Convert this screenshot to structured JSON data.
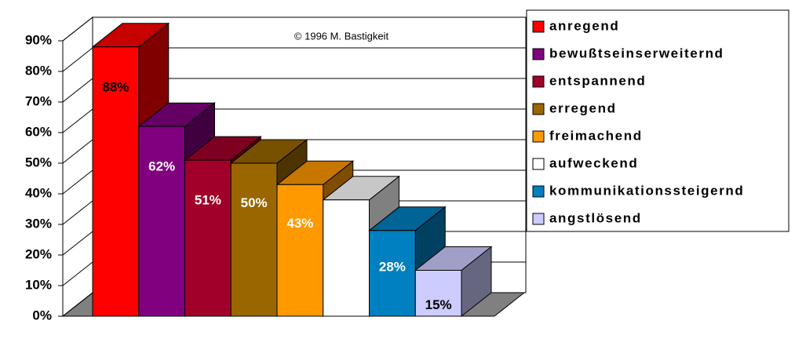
{
  "chart_data": {
    "type": "bar3d",
    "annotation": "© 1996 M. Bastigkeit",
    "ylim": [
      0,
      90
    ],
    "yticks": [
      {
        "value": 0,
        "label": "0%"
      },
      {
        "value": 10,
        "label": "10%"
      },
      {
        "value": 20,
        "label": "20%"
      },
      {
        "value": 30,
        "label": "30%"
      },
      {
        "value": 40,
        "label": "40%"
      },
      {
        "value": 50,
        "label": "50%"
      },
      {
        "value": 60,
        "label": "60%"
      },
      {
        "value": 70,
        "label": "70%"
      },
      {
        "value": 80,
        "label": "80%"
      },
      {
        "value": 90,
        "label": "90%"
      }
    ],
    "grid": true,
    "legend": "right",
    "series": [
      {
        "name": "anregend",
        "color": "#ff0000",
        "label_color": "#000000",
        "values": [
          88
        ],
        "value_labels": [
          "88%"
        ]
      },
      {
        "name": "bewußtseinserweiternd",
        "color": "#800080",
        "label_color": "#ffffff",
        "values": [
          62
        ],
        "value_labels": [
          "62%"
        ]
      },
      {
        "name": "entspannend",
        "color": "#a0002a",
        "label_color": "#ffffff",
        "values": [
          51
        ],
        "value_labels": [
          "51%"
        ]
      },
      {
        "name": "erregend",
        "color": "#996600",
        "label_color": "#ffffff",
        "values": [
          50
        ],
        "value_labels": [
          "50%"
        ]
      },
      {
        "name": "freimachend",
        "color": "#ff9900",
        "label_color": "#ffffff",
        "values": [
          43
        ],
        "value_labels": [
          "43%"
        ]
      },
      {
        "name": "aufweckend",
        "color": "#ffffff",
        "label_color": "#ffffff",
        "values": [
          38
        ]
      },
      {
        "name": "kommunikationssteigernd",
        "color": "#0080c0",
        "label_color": "#ffffff",
        "values": [
          28
        ],
        "value_labels": [
          "28%"
        ]
      },
      {
        "name": "angstlösend",
        "color": "#ccccff",
        "label_color": "#000000",
        "values": [
          15
        ],
        "value_labels": [
          "15%"
        ]
      }
    ]
  }
}
